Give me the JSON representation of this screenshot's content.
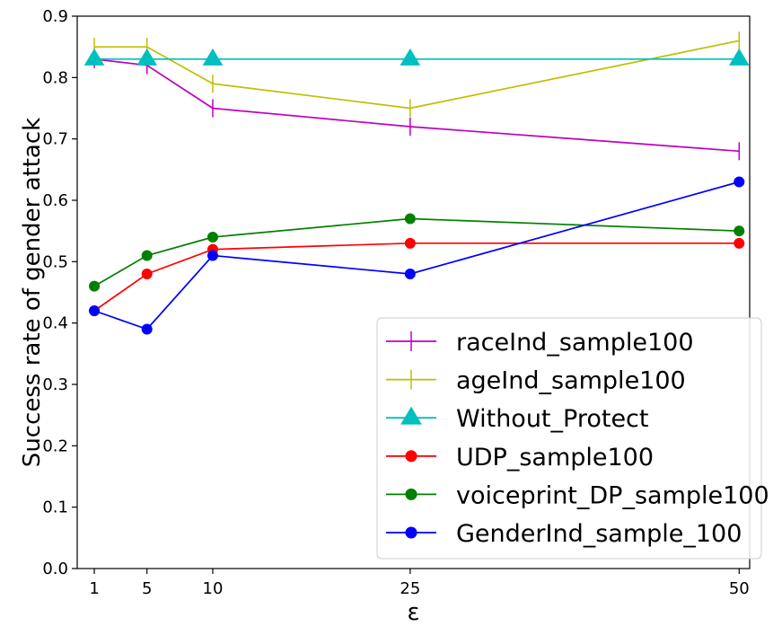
{
  "chart_data": {
    "type": "line",
    "title": "",
    "xlabel": "ε",
    "ylabel": "Success rate of gender attack",
    "x": [
      1,
      5,
      10,
      25,
      50
    ],
    "xticks": [
      1,
      5,
      10,
      25,
      50
    ],
    "xlim": [
      -0.3,
      50.8
    ],
    "ylim": [
      0.0,
      0.9
    ],
    "yticks": [
      0.0,
      0.1,
      0.2,
      0.3,
      0.4,
      0.5,
      0.6,
      0.7,
      0.8,
      0.9
    ],
    "grid": false,
    "legend_position": "lower-right",
    "series": [
      {
        "name": "raceInd_sample100",
        "color": "#bf00bf",
        "marker": "vline",
        "values": [
          0.83,
          0.82,
          0.75,
          0.72,
          0.68
        ]
      },
      {
        "name": "ageInd_sample100",
        "color": "#bfbf00",
        "marker": "vline",
        "values": [
          0.85,
          0.85,
          0.79,
          0.75,
          0.86
        ]
      },
      {
        "name": "Without_Protect",
        "color": "#00bfbf",
        "marker": "triangle",
        "values": [
          0.83,
          0.83,
          0.83,
          0.83,
          0.83
        ]
      },
      {
        "name": "UDP_sample100",
        "color": "#ff0000",
        "marker": "circle",
        "values": [
          0.42,
          0.48,
          0.52,
          0.53,
          0.53
        ]
      },
      {
        "name": "voiceprint_DP_sample100",
        "color": "#008000",
        "marker": "circle",
        "values": [
          0.46,
          0.51,
          0.54,
          0.57,
          0.55
        ]
      },
      {
        "name": "GenderInd_sample_100",
        "color": "#0000ff",
        "marker": "circle",
        "values": [
          0.42,
          0.39,
          0.51,
          0.48,
          0.63
        ]
      }
    ]
  }
}
